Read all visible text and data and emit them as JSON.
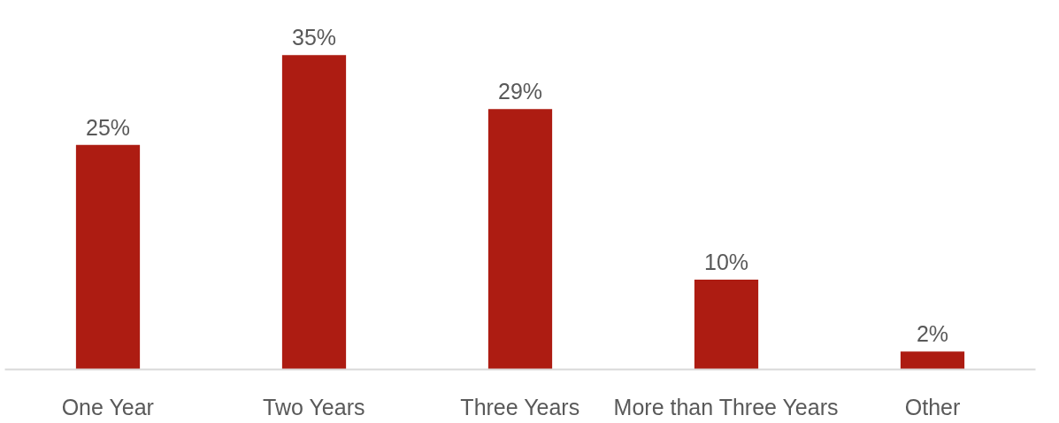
{
  "chart_data": {
    "type": "bar",
    "categories": [
      "One Year",
      "Two Years",
      "Three Years",
      "More than Three Years",
      "Other"
    ],
    "values": [
      25,
      35,
      29,
      10,
      2
    ],
    "value_labels": [
      "25%",
      "35%",
      "29%",
      "10%",
      "2%"
    ],
    "color": "#ad1c12",
    "tick_labels": "x"
  }
}
